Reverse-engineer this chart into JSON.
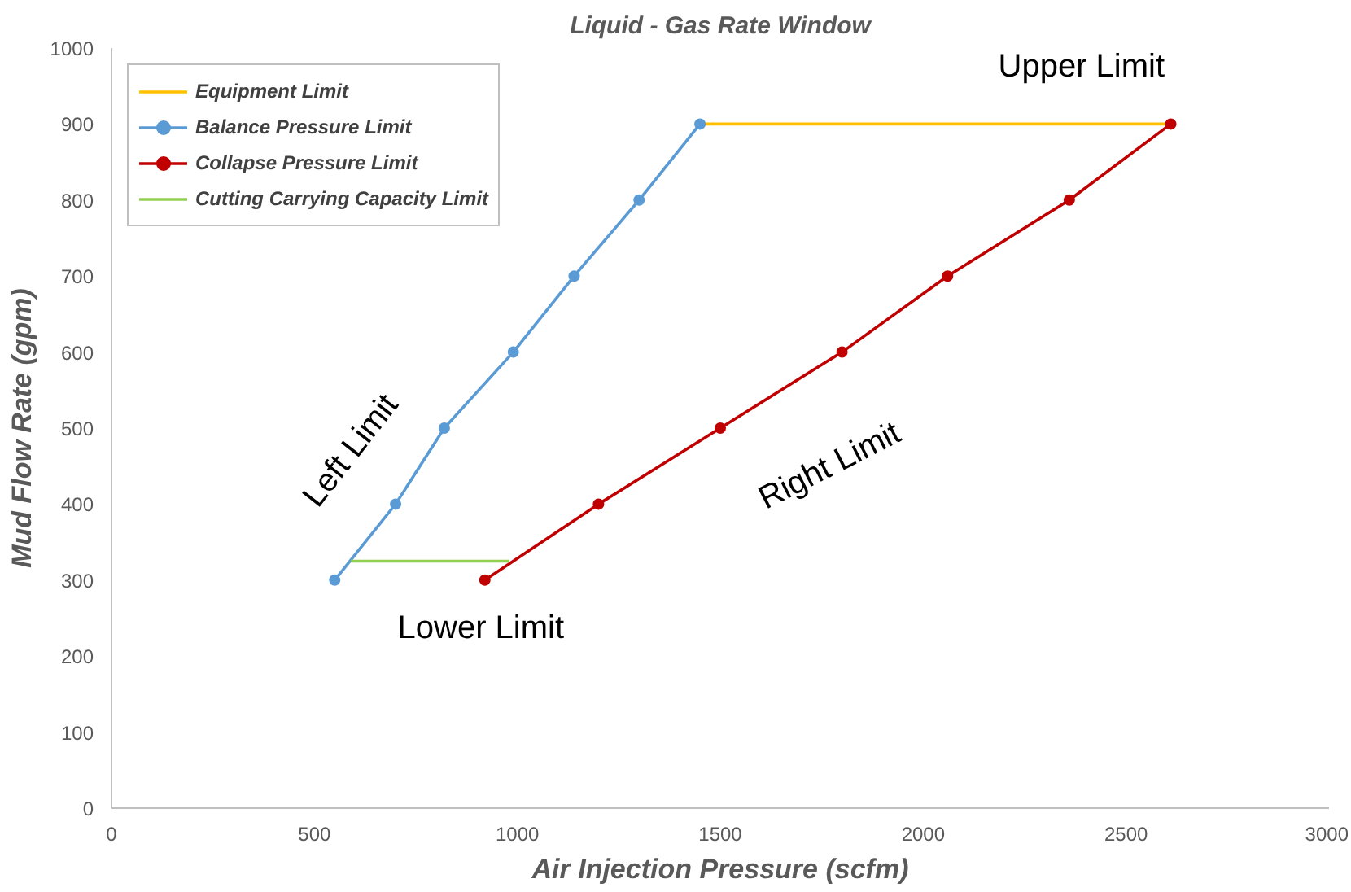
{
  "chart_data": {
    "type": "line",
    "title": "Liquid - Gas Rate Window",
    "xlabel": "Air Injection Pressure (scfm)",
    "ylabel": "Mud Flow Rate (gpm)",
    "xlim": [
      0,
      3000
    ],
    "xticks": [
      0,
      500,
      1000,
      1500,
      2000,
      2500,
      3000
    ],
    "ylim": [
      0,
      1000
    ],
    "yticks": [
      0,
      100,
      200,
      300,
      400,
      500,
      600,
      700,
      800,
      900,
      1000
    ],
    "series": [
      {
        "name": "Equipment Limit",
        "color": "#ffc000",
        "x": [
          1450,
          2610
        ],
        "values": [
          900,
          900
        ],
        "marker": "none"
      },
      {
        "name": "Balance Pressure Limit",
        "color": "#5b9bd5",
        "x": [
          550,
          700,
          820,
          990,
          1140,
          1300,
          1450
        ],
        "values": [
          300,
          400,
          500,
          600,
          700,
          800,
          900
        ],
        "marker": "circle"
      },
      {
        "name": "Collapse Pressure Limit",
        "color": "#c00000",
        "x": [
          920,
          1200,
          1500,
          1800,
          2060,
          2360,
          2610
        ],
        "values": [
          300,
          400,
          500,
          600,
          700,
          800,
          900
        ],
        "marker": "circle"
      },
      {
        "name": "Cutting Carrying Capacity Limit",
        "color": "#92d050",
        "x": [
          590,
          980
        ],
        "values": [
          325,
          325
        ],
        "marker": "none"
      }
    ],
    "annotations": [
      "Left Limit",
      "Right Limit",
      "Upper Limit",
      "Lower Limit"
    ],
    "legend": "top left",
    "grid": false
  }
}
